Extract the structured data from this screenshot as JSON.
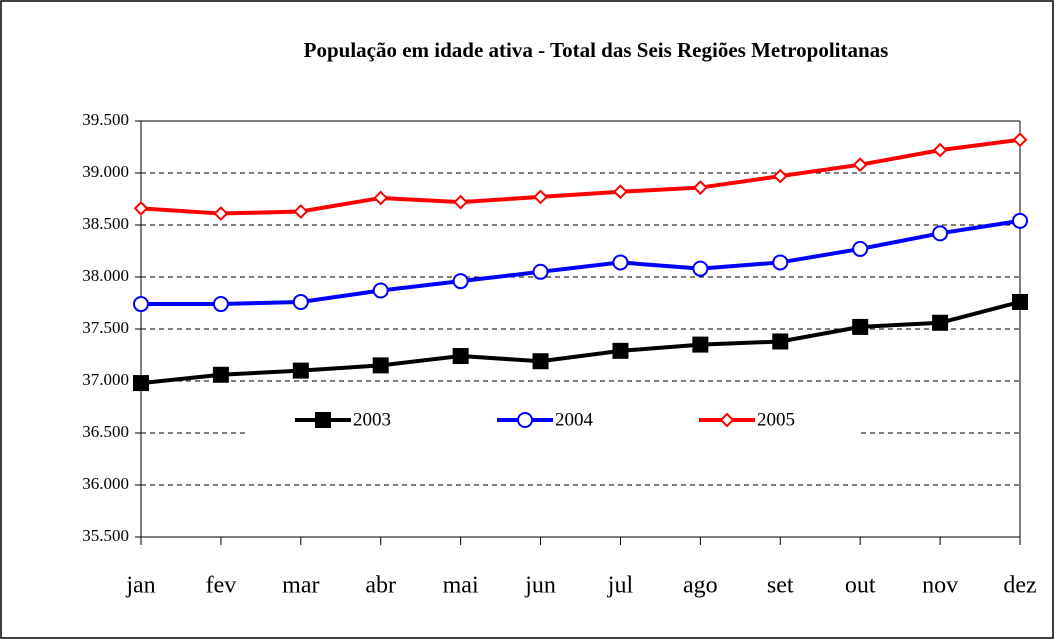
{
  "chart_data": {
    "type": "line",
    "title": "População em idade ativa - Total das Seis Regiões Metropolitanas",
    "categories": [
      "jan",
      "fev",
      "mar",
      "abr",
      "mai",
      "jun",
      "jul",
      "ago",
      "set",
      "out",
      "nov",
      "dez"
    ],
    "series": [
      {
        "name": "2003",
        "color": "#000000",
        "marker": "square",
        "values": [
          36980,
          37060,
          37100,
          37150,
          37240,
          37190,
          37290,
          37350,
          37380,
          37520,
          37560,
          37760
        ]
      },
      {
        "name": "2004",
        "color": "#0000ff",
        "marker": "circle",
        "values": [
          37740,
          37740,
          37760,
          37870,
          37960,
          38050,
          38140,
          38080,
          38140,
          38270,
          38420,
          38540
        ]
      },
      {
        "name": "2005",
        "color": "#ff0000",
        "marker": "diamond",
        "values": [
          38660,
          38610,
          38630,
          38760,
          38720,
          38770,
          38820,
          38860,
          38970,
          39080,
          39220,
          39320
        ]
      }
    ],
    "ylim": [
      35500,
      39500
    ],
    "yticks": [
      {
        "value": 35500,
        "label": "35.500"
      },
      {
        "value": 36000,
        "label": "36.000"
      },
      {
        "value": 36500,
        "label": "36.500"
      },
      {
        "value": 37000,
        "label": "37.000"
      },
      {
        "value": 37500,
        "label": "37.500"
      },
      {
        "value": 38000,
        "label": "38.000"
      },
      {
        "value": 38500,
        "label": "38.500"
      },
      {
        "value": 39000,
        "label": "39.000"
      },
      {
        "value": 39500,
        "label": "39.500"
      }
    ],
    "grid": true,
    "legend": "center"
  }
}
